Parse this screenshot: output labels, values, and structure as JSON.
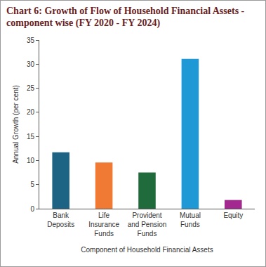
{
  "chart_data": {
    "type": "bar",
    "title": "Chart 6: Growth of Flow of Household Financial Assets - component wise (FY 2020 - FY 2024)",
    "x_label": "Component of Household Financial Assets",
    "y_label": "Annual Growth (per cent)",
    "categories": [
      "Bank Deposits",
      "Life Insurance Funds",
      "Provident and Pension Funds",
      "Mutual Funds",
      "Equity"
    ],
    "values": [
      11.7,
      9.6,
      7.5,
      31.1,
      1.8
    ],
    "colors": [
      "#1c6384",
      "#f07a33",
      "#1f6b3b",
      "#1f98d6",
      "#a3288f"
    ],
    "ylim": [
      0,
      35
    ],
    "yticks": [
      0,
      5,
      10,
      15,
      20,
      25,
      30,
      35
    ],
    "grid": false
  }
}
